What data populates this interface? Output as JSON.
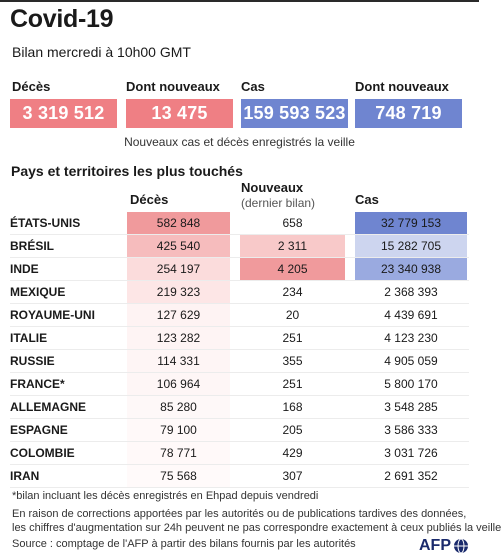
{
  "header": {
    "title": "Covid-19",
    "subtitle": "Bilan mercredi à 10h00 GMT"
  },
  "summary": [
    {
      "label": "Décès",
      "value": "3 319 512",
      "color": "#ef7f84"
    },
    {
      "label": "Dont nouveaux",
      "value": "13 475",
      "color": "#ef7f84"
    },
    {
      "label": "Cas",
      "value": "159 593 523",
      "color": "#6f85d0"
    },
    {
      "label": "Dont nouveaux",
      "value": "748 719",
      "color": "#6f85d0"
    }
  ],
  "summary_note": "Nouveaux cas et décès enregistrés la veille",
  "table": {
    "section_title": "Pays et territoires les plus touchés",
    "col_deaths": "Décès",
    "col_new": "Nouveaux",
    "col_new_sub": "(dernier bilan)",
    "col_cases": "Cas",
    "rows": [
      {
        "country": "ÉTATS-UNIS",
        "deaths": "582 848",
        "new": "658",
        "cases": "32 779 153",
        "d_bg": "#f09a9c",
        "n_bg": "#ffffff",
        "c_bg": "#6f85d0"
      },
      {
        "country": "BRÉSIL",
        "deaths": "425 540",
        "new": "2 311",
        "cases": "15 282 705",
        "d_bg": "#f6bcbd",
        "n_bg": "#f8c9c9",
        "c_bg": "#cdd5ef"
      },
      {
        "country": "INDE",
        "deaths": "254 197",
        "new": "4 205",
        "cases": "23 340 938",
        "d_bg": "#fbdcdc",
        "n_bg": "#f09a9c",
        "c_bg": "#9aaae0"
      },
      {
        "country": "MEXIQUE",
        "deaths": "219 323",
        "new": "234",
        "cases": "2 368 393",
        "d_bg": "#fde6e6",
        "n_bg": "#ffffff",
        "c_bg": "#ffffff"
      },
      {
        "country": "ROYAUME-UNI",
        "deaths": "127 629",
        "new": "20",
        "cases": "4 439 691",
        "d_bg": "#fef3f3",
        "n_bg": "#ffffff",
        "c_bg": "#ffffff"
      },
      {
        "country": "ITALIE",
        "deaths": "123 282",
        "new": "251",
        "cases": "4 123 230",
        "d_bg": "#fef4f4",
        "n_bg": "#ffffff",
        "c_bg": "#ffffff"
      },
      {
        "country": "RUSSIE",
        "deaths": "114 331",
        "new": "355",
        "cases": "4 905 059",
        "d_bg": "#fef5f5",
        "n_bg": "#ffffff",
        "c_bg": "#ffffff"
      },
      {
        "country": "FRANCE*",
        "deaths": "106 964",
        "new": "251",
        "cases": "5 800 170",
        "d_bg": "#fef6f6",
        "n_bg": "#ffffff",
        "c_bg": "#ffffff"
      },
      {
        "country": "ALLEMAGNE",
        "deaths": "85 280",
        "new": "168",
        "cases": "3 548 285",
        "d_bg": "#fef8f8",
        "n_bg": "#ffffff",
        "c_bg": "#ffffff"
      },
      {
        "country": "ESPAGNE",
        "deaths": "79 100",
        "new": "205",
        "cases": "3 586 333",
        "d_bg": "#fff9f9",
        "n_bg": "#ffffff",
        "c_bg": "#ffffff"
      },
      {
        "country": "COLOMBIE",
        "deaths": "78 771",
        "new": "429",
        "cases": "3 031 726",
        "d_bg": "#fff9f9",
        "n_bg": "#ffffff",
        "c_bg": "#ffffff"
      },
      {
        "country": "IRAN",
        "deaths": "75 568",
        "new": "307",
        "cases": "2 691 352",
        "d_bg": "#fffafa",
        "n_bg": "#ffffff",
        "c_bg": "#ffffff"
      }
    ]
  },
  "footnotes": {
    "star": "*bilan incluant les décès enregistrés en Ehpad depuis vendredi",
    "line1": "En raison de corrections apportées par les autorités ou de publications tardives des données,",
    "line2": "les chiffres d'augmentation sur 24h peuvent ne pas correspondre exactement à ceux publiés la veille",
    "source": "Source : comptage de l'AFP à partir des bilans fournis par les autorités"
  },
  "logo": {
    "text": "AFP",
    "icon": "globe-icon"
  }
}
